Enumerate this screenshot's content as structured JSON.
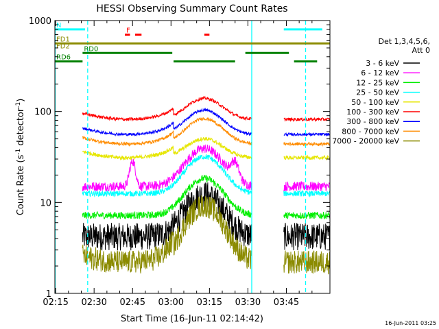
{
  "chart_data": {
    "type": "line",
    "title": "HESSI Observing Summary Count Rates",
    "xlabel": "Start Time (16-Jun-11 02:14:42)",
    "ylabel_main": "Count Rate (s",
    "ylabel_sup1": "-1",
    "ylabel_mid": " detector",
    "ylabel_sup2": "-1",
    "ylabel_end": ")",
    "footer": "16-Jun-2011 03:25",
    "x_range_min": [
      134.7,
      242
    ],
    "ylim": [
      1,
      1000
    ],
    "y_scale": "log",
    "x_ticks": [
      {
        "v": 135,
        "label": "02:15"
      },
      {
        "v": 150,
        "label": "02:30"
      },
      {
        "v": 165,
        "label": "02:45"
      },
      {
        "v": 180,
        "label": "03:00"
      },
      {
        "v": 195,
        "label": "03:15"
      },
      {
        "v": 210,
        "label": "03:30"
      },
      {
        "v": 225,
        "label": "03:45"
      }
    ],
    "y_ticks": [
      {
        "v": 1,
        "label": "1"
      },
      {
        "v": 10,
        "label": "10"
      },
      {
        "v": 100,
        "label": "100"
      },
      {
        "v": 1000,
        "label": "1000"
      }
    ],
    "legend_position": "right",
    "legend_header_1": "Det 1,3,4,5,6,",
    "legend_header_2": "Att 0",
    "series": [
      {
        "name": "3 - 6 keV",
        "color": "#000000",
        "base": 4.2,
        "peak": 1.9,
        "noise": 0.35
      },
      {
        "name": "6 - 12 keV",
        "color": "#ff00ff",
        "base": 15,
        "peak": 1.6,
        "noise": 0.12
      },
      {
        "name": "12 - 25 keV",
        "color": "#00ee00",
        "base": 7.2,
        "peak": 1.55,
        "noise": 0.09
      },
      {
        "name": "25 - 50 keV",
        "color": "#00ffff",
        "base": 12.5,
        "peak": 1.55,
        "noise": 0.07
      },
      {
        "name": "50 - 100 keV",
        "color": "#e6e600",
        "base": 31,
        "peak": 0.62,
        "noise": 0.05
      },
      {
        "name": "100 - 300 keV",
        "color": "#ff0000",
        "base": 82,
        "peak": 0.7,
        "noise": 0.04
      },
      {
        "name": "300 - 800 keV",
        "color": "#0000ff",
        "base": 56,
        "peak": 0.85,
        "noise": 0.035
      },
      {
        "name": "800 - 7000 keV",
        "color": "#ff8c00",
        "base": 44,
        "peak": 0.9,
        "noise": 0.04
      },
      {
        "name": "7000 - 20000 keV",
        "color": "#8b8b00",
        "base": 2.2,
        "peak": 3.2,
        "noise": 0.3
      }
    ],
    "day_intervals_min": [
      [
        145.5,
        211.5
      ],
      [
        224,
        242
      ]
    ],
    "saa_lines_min": [
      134.8,
      211.5
    ],
    "dashed_lines_min": [
      147.5,
      232.5
    ],
    "flag_bars": [
      {
        "label": "N",
        "color": "#00ffff",
        "y": 800,
        "segments": [
          [
            134.7,
            146.5
          ],
          [
            224,
            239
          ]
        ]
      },
      {
        "label": "F",
        "color": "#ff0000",
        "y": 700,
        "segments": [
          [
            162,
            164
          ],
          [
            166,
            168.5
          ],
          [
            193,
            195
          ]
        ]
      },
      {
        "label": "FD1",
        "color": "#8b8b00",
        "y": 560,
        "segments": [
          [
            134.7,
            242
          ]
        ]
      },
      {
        "label": "FD2",
        "color": "#8b8b00",
        "y": 470,
        "segments": []
      },
      {
        "label": "RD0",
        "color": "#008000",
        "y": 440,
        "segments": [
          [
            145.5,
            180.5
          ],
          [
            209,
            226
          ]
        ]
      },
      {
        "label": "RD6",
        "color": "#008000",
        "y": 355,
        "segments": [
          [
            134.7,
            145.5
          ],
          [
            181,
            205
          ],
          [
            228,
            237
          ]
        ]
      }
    ]
  }
}
